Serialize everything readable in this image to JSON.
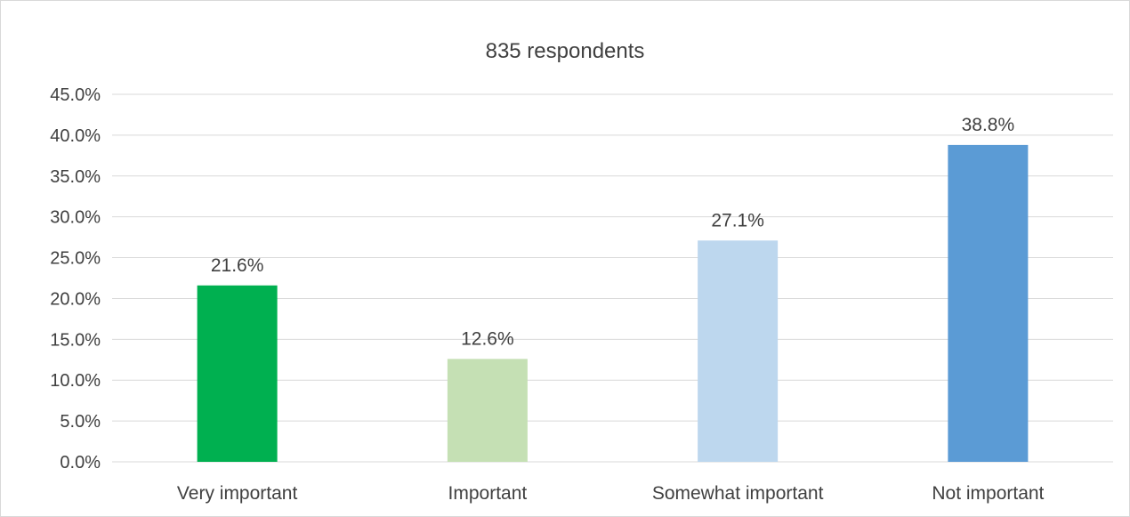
{
  "chart_data": {
    "type": "bar",
    "title": "835 respondents",
    "categories": [
      "Very important",
      "Important",
      "Somewhat important",
      "Not important"
    ],
    "values": [
      21.6,
      12.6,
      27.1,
      38.8
    ],
    "value_labels": [
      "21.6%",
      "12.6%",
      "27.1%",
      "38.8%"
    ],
    "colors": [
      "#00b050",
      "#c5e0b4",
      "#bdd7ee",
      "#5b9bd5"
    ],
    "ylim": [
      0,
      45
    ],
    "yticks": [
      0,
      5,
      10,
      15,
      20,
      25,
      30,
      35,
      40,
      45
    ],
    "ytick_labels": [
      "0.0%",
      "5.0%",
      "10.0%",
      "15.0%",
      "20.0%",
      "25.0%",
      "30.0%",
      "35.0%",
      "40.0%",
      "45.0%"
    ],
    "xlabel": "",
    "ylabel": "",
    "grid": true,
    "legend": "none"
  }
}
